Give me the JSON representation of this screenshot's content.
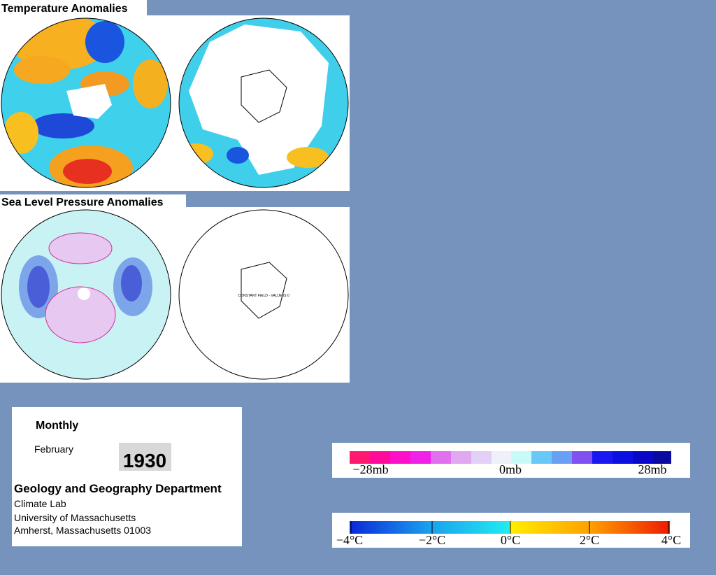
{
  "panels": [
    {
      "title": "Temperature Anomalies"
    },
    {
      "title": "Sea Level Pressure Anomalies",
      "note": "CONSTANT FIELD - VALUE IS 0"
    }
  ],
  "info": {
    "frequency": "Monthly",
    "month": "February",
    "year": "1930",
    "department": "Geology and Geography Department",
    "address": [
      "Climate Lab",
      "University of Massachusetts",
      "Amherst, Massachusetts 01003"
    ]
  },
  "legends": [
    {
      "labels": [
        "−28mb",
        "0mb",
        "28mb"
      ]
    },
    {
      "labels": [
        "−4°C",
        "−2°C",
        "0°C",
        "2°C",
        "4°C"
      ]
    }
  ]
}
